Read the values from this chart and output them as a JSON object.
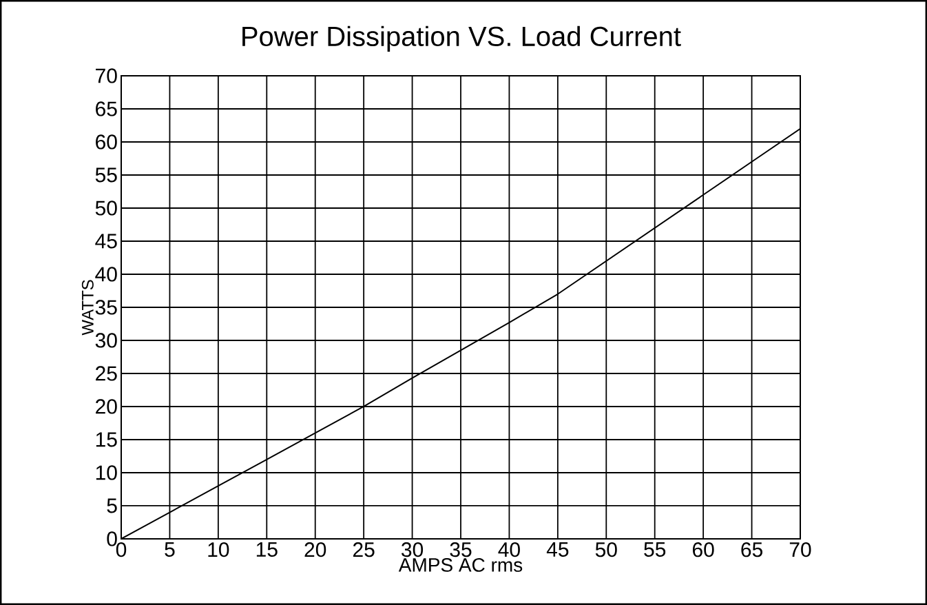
{
  "chart_data": {
    "type": "line",
    "title": "Power Dissipation VS. Load Current",
    "xlabel": "AMPS AC rms",
    "ylabel": "WATTS",
    "x": [
      0,
      5,
      10,
      15,
      20,
      25,
      30,
      35,
      40,
      45,
      50,
      55,
      60,
      65,
      70
    ],
    "values": [
      0,
      4,
      8,
      12,
      16,
      20,
      24.3,
      28.5,
      32.7,
      37,
      42,
      47,
      52,
      57,
      62
    ],
    "color": "#000000",
    "xlim": [
      0,
      70
    ],
    "ylim": [
      0,
      70
    ],
    "xticks": [
      0,
      5,
      10,
      15,
      20,
      25,
      30,
      35,
      40,
      45,
      50,
      55,
      60,
      65,
      70
    ],
    "yticks": [
      0,
      5,
      10,
      15,
      20,
      25,
      30,
      35,
      40,
      45,
      50,
      55,
      60,
      65,
      70
    ],
    "grid": true
  }
}
